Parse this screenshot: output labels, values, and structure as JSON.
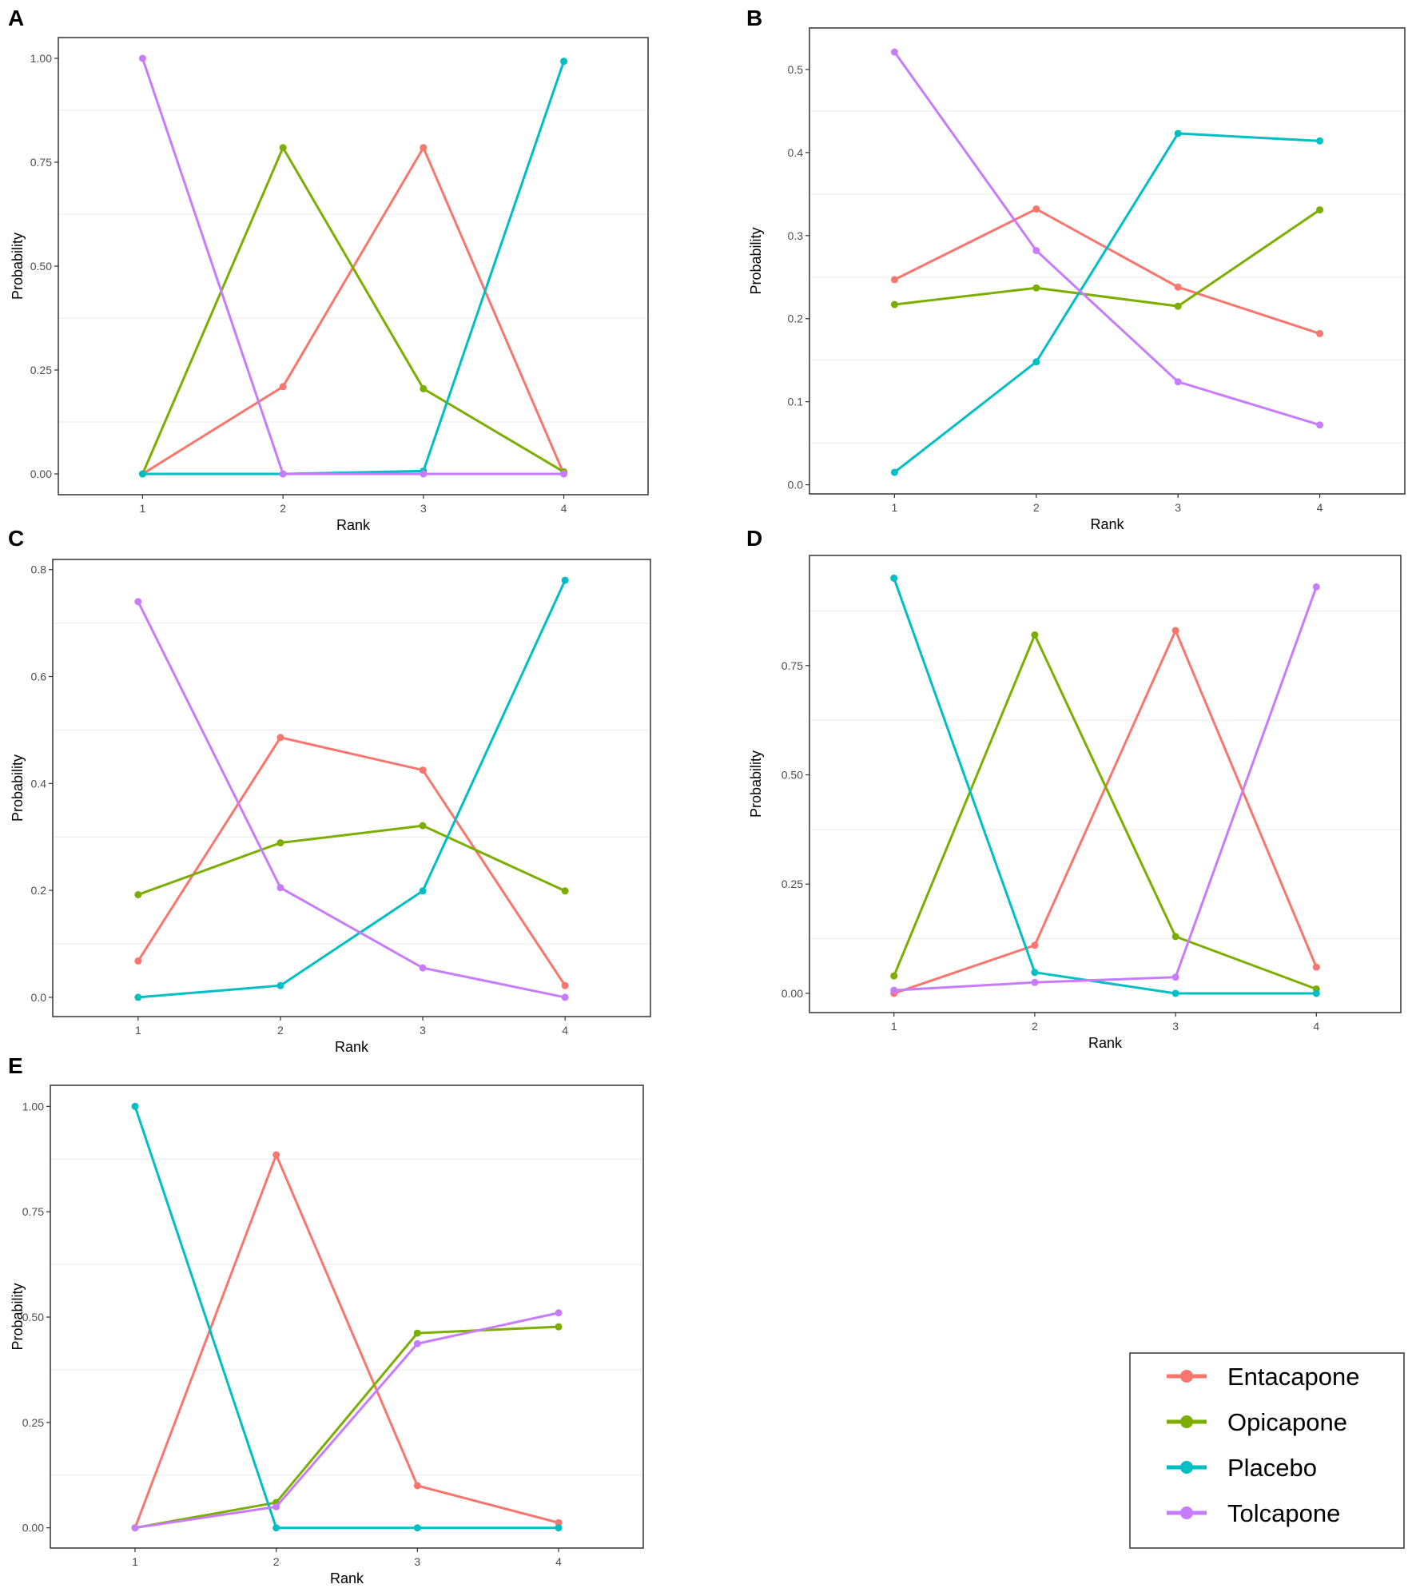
{
  "series_names": [
    "Entacapone",
    "Opicapone",
    "Placebo",
    "Tolcapone"
  ],
  "colors": {
    "Entacapone": "#F8766D",
    "Opicapone": "#7CAE00",
    "Placebo": "#00BFC4",
    "Tolcapone": "#C77CFF"
  },
  "legend": {
    "position": "bottom-right",
    "items": [
      "Entacapone",
      "Opicapone",
      "Placebo",
      "Tolcapone"
    ]
  },
  "chart_data": [
    {
      "panel": "A",
      "type": "line",
      "xlabel": "Rank",
      "ylabel": "Probability",
      "categories": [
        1,
        2,
        3,
        4
      ],
      "xlim": [
        0.4,
        4.6
      ],
      "ylim": [
        -0.05,
        1.05
      ],
      "yticks": [
        0,
        0.25,
        0.5,
        0.75,
        1.0
      ],
      "ytick_labels": [
        "0.00",
        "0.25",
        "0.50",
        "0.75",
        "1.00"
      ],
      "grid": "minor-horizontal",
      "series": [
        {
          "name": "Entacapone",
          "values": [
            0,
            0.21,
            0.785,
            0
          ]
        },
        {
          "name": "Opicapone",
          "values": [
            0,
            0.785,
            0.205,
            0.005
          ]
        },
        {
          "name": "Placebo",
          "values": [
            0,
            0,
            0.007,
            0.993
          ]
        },
        {
          "name": "Tolcapone",
          "values": [
            1,
            0,
            0,
            0
          ]
        }
      ]
    },
    {
      "panel": "B",
      "type": "line",
      "xlabel": "Rank",
      "ylabel": "Probability",
      "categories": [
        1,
        2,
        3,
        4
      ],
      "xlim": [
        0.4,
        4.6
      ],
      "ylim": [
        -0.011,
        0.55
      ],
      "yticks": [
        0,
        0.1,
        0.2,
        0.3,
        0.4,
        0.5
      ],
      "ytick_labels": [
        "0.0",
        "0.1",
        "0.2",
        "0.3",
        "0.4",
        "0.5"
      ],
      "grid": "minor-horizontal",
      "series": [
        {
          "name": "Entacapone",
          "values": [
            0.247,
            0.332,
            0.238,
            0.182
          ]
        },
        {
          "name": "Opicapone",
          "values": [
            0.217,
            0.237,
            0.215,
            0.331
          ]
        },
        {
          "name": "Placebo",
          "values": [
            0.015,
            0.148,
            0.423,
            0.414
          ]
        },
        {
          "name": "Tolcapone",
          "values": [
            0.521,
            0.282,
            0.124,
            0.072
          ]
        }
      ]
    },
    {
      "panel": "C",
      "type": "line",
      "xlabel": "Rank",
      "ylabel": "Probability",
      "categories": [
        1,
        2,
        3,
        4
      ],
      "xlim": [
        0.4,
        4.6
      ],
      "ylim": [
        -0.036,
        0.819
      ],
      "yticks": [
        0,
        0.2,
        0.4,
        0.6,
        0.8
      ],
      "ytick_labels": [
        "0.0",
        "0.2",
        "0.4",
        "0.6",
        "0.8"
      ],
      "grid": "minor-horizontal",
      "series": [
        {
          "name": "Entacapone",
          "values": [
            0.068,
            0.486,
            0.425,
            0.022
          ]
        },
        {
          "name": "Opicapone",
          "values": [
            0.192,
            0.289,
            0.321,
            0.199
          ]
        },
        {
          "name": "Placebo",
          "values": [
            0,
            0.022,
            0.199,
            0.78
          ]
        },
        {
          "name": "Tolcapone",
          "values": [
            0.74,
            0.205,
            0.055,
            0
          ]
        }
      ]
    },
    {
      "panel": "D",
      "type": "line",
      "xlabel": "Rank",
      "ylabel": "Probability",
      "categories": [
        1,
        2,
        3,
        4
      ],
      "xlim": [
        0.4,
        4.6
      ],
      "ylim": [
        -0.044,
        1.002
      ],
      "yticks": [
        0,
        0.25,
        0.5,
        0.75
      ],
      "ytick_labels": [
        "0.00",
        "0.25",
        "0.50",
        "0.75"
      ],
      "grid": "minor-horizontal",
      "series": [
        {
          "name": "Entacapone",
          "values": [
            0,
            0.11,
            0.83,
            0.06
          ]
        },
        {
          "name": "Opicapone",
          "values": [
            0.04,
            0.82,
            0.13,
            0.01
          ]
        },
        {
          "name": "Placebo",
          "values": [
            0.95,
            0.048,
            0,
            0
          ]
        },
        {
          "name": "Tolcapone",
          "values": [
            0.007,
            0.025,
            0.037,
            0.93
          ]
        }
      ]
    },
    {
      "panel": "E",
      "type": "line",
      "xlabel": "Rank",
      "ylabel": "Probability",
      "categories": [
        1,
        2,
        3,
        4
      ],
      "xlim": [
        0.4,
        4.6
      ],
      "ylim": [
        -0.048,
        1.05
      ],
      "yticks": [
        0,
        0.25,
        0.5,
        0.75,
        1.0
      ],
      "ytick_labels": [
        "0.00",
        "0.25",
        "0.50",
        "0.75",
        "1.00"
      ],
      "grid": "minor-horizontal",
      "series": [
        {
          "name": "Entacapone",
          "values": [
            0,
            0.885,
            0.1,
            0.012
          ]
        },
        {
          "name": "Opicapone",
          "values": [
            0,
            0.06,
            0.462,
            0.477
          ]
        },
        {
          "name": "Placebo",
          "values": [
            1,
            0,
            0,
            0
          ]
        },
        {
          "name": "Tolcapone",
          "values": [
            0,
            0.05,
            0.437,
            0.51
          ]
        }
      ]
    }
  ]
}
